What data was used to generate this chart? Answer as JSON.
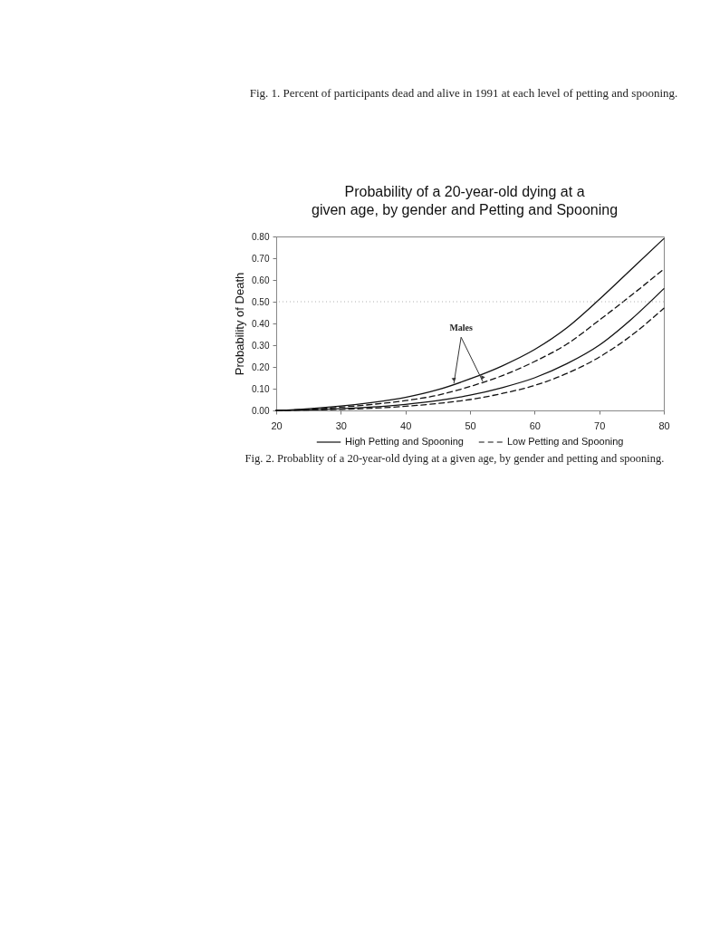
{
  "chart_data": {
    "type": "line",
    "title": "Probability of a 20-year-old dying at a\ngiven age, by gender and Petting and Spooning",
    "ylabel": "Probability of Death",
    "x": [
      20,
      25,
      30,
      35,
      40,
      45,
      50,
      55,
      60,
      65,
      70,
      75,
      80
    ],
    "series": [
      {
        "name": "High Petting and Spooning",
        "color": "#111111",
        "line_style": "solid",
        "values": [
          0,
          0.008,
          0.02,
          0.037,
          0.06,
          0.095,
          0.145,
          0.205,
          0.28,
          0.38,
          0.51,
          0.65,
          0.79
        ]
      },
      {
        "name": "Low Petting and Spooning",
        "color": "#111111",
        "line_style": "dashed",
        "values": [
          0,
          0.005,
          0.015,
          0.028,
          0.045,
          0.07,
          0.11,
          0.16,
          0.225,
          0.305,
          0.415,
          0.53,
          0.65
        ]
      },
      {
        "color": "#111111",
        "line_style": "solid",
        "values": [
          0,
          0.003,
          0.008,
          0.016,
          0.028,
          0.045,
          0.07,
          0.105,
          0.15,
          0.215,
          0.3,
          0.42,
          0.56
        ]
      },
      {
        "color": "#111111",
        "line_style": "dashed",
        "values": [
          0,
          0.002,
          0.005,
          0.01,
          0.019,
          0.032,
          0.05,
          0.078,
          0.115,
          0.17,
          0.245,
          0.345,
          0.47
        ]
      }
    ],
    "xlim": [
      20,
      80
    ],
    "xticks": [
      20,
      30,
      40,
      50,
      60,
      70,
      80
    ],
    "ylim": [
      0,
      0.8
    ],
    "yticks": [
      {
        "value": 0,
        "label": "0.00"
      },
      {
        "value": 0.1,
        "label": "0.10"
      },
      {
        "value": 0.2,
        "label": "0.20"
      },
      {
        "value": 0.3,
        "label": "0.30"
      },
      {
        "value": 0.4,
        "label": "0.40"
      },
      {
        "value": 0.5,
        "label": "0.50"
      },
      {
        "value": 0.6,
        "label": "0.60"
      },
      {
        "value": 0.7,
        "label": "0.70"
      },
      {
        "value": 0.8,
        "label": "0.80"
      }
    ],
    "ref_lines": [
      {
        "axis": "y",
        "value": 0.5,
        "color": "#b0b0b0",
        "line_style": "dotted"
      }
    ],
    "annotations": [
      "Fig. 1. Percent of participants dead and alive in 1991 at each level of petting and spooning.",
      {
        "text": "Males",
        "x": 47.5,
        "y": 0.12
      },
      "Fig. 2. Probablity of a 20-year-old dying at a given age, by gender and petting and spooning."
    ],
    "legend": "bottom",
    "grid": false,
    "marker": "none"
  }
}
